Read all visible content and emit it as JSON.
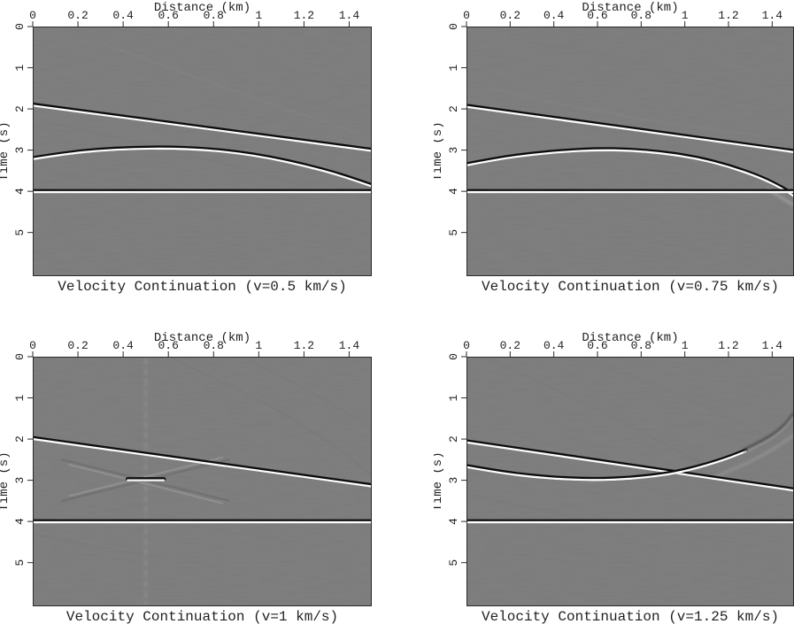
{
  "figure": {
    "background": "#ffffff",
    "text_color": "#1f1f1f",
    "panel_gray": "#7b7b7b",
    "border_color": "#2a2a2a",
    "tick_color": "#2a2a2a",
    "wavelet_white": "#ffffff",
    "wavelet_black": "#070707",
    "artifact_dark": "#5a5a5a",
    "artifact_light": "#d9d9d9"
  },
  "chart_data": [
    {
      "type": "heatmap",
      "title": "Velocity Continuation (v=0.5 km/s)",
      "xlabel": "Distance (km)",
      "ylabel": "Time (s)",
      "xlim": [
        0,
        1.5
      ],
      "ylim": [
        0,
        6.06
      ],
      "y_down": true,
      "grid": false,
      "xtick_values": [
        0,
        0.2,
        0.4,
        0.6,
        0.8,
        1,
        1.2,
        1.4
      ],
      "xtick_labels": [
        "0",
        "0.2",
        "0.4",
        "0.6",
        "0.8",
        "1",
        "1.2",
        "1.4"
      ],
      "ytick_values": [
        0,
        1,
        2,
        3,
        4,
        5
      ],
      "ytick_labels": [
        "0",
        "1",
        "2",
        "3",
        "4",
        "5"
      ],
      "events": [
        {
          "name": "dipping-reflector",
          "points": [
            [
              0,
              1.92
            ],
            [
              1.5,
              3.02
            ]
          ]
        },
        {
          "name": "under-migrated-hyperbola",
          "points": [
            [
              0,
              3.22
            ],
            [
              0.15,
              3.09
            ],
            [
              0.3,
              3.01
            ],
            [
              0.45,
              2.97
            ],
            [
              0.6,
              2.96
            ],
            [
              0.75,
              2.99
            ],
            [
              0.9,
              3.07
            ],
            [
              1.05,
              3.2
            ],
            [
              1.2,
              3.38
            ],
            [
              1.35,
              3.6
            ],
            [
              1.5,
              3.88
            ]
          ]
        },
        {
          "name": "flat-reflector",
          "points": [
            [
              0,
              4.02
            ],
            [
              1.5,
              4.02
            ]
          ]
        }
      ],
      "artifacts": [
        {
          "name": "residual-flank-a",
          "shade": "dark",
          "width": 1,
          "opacity": 0.1,
          "blur": 0.7,
          "points": [
            [
              0.05,
              2.3
            ],
            [
              0.7,
              3.1
            ],
            [
              1.35,
              4.1
            ]
          ]
        },
        {
          "name": "residual-flank-b",
          "shade": "dark",
          "width": 1,
          "opacity": 0.08,
          "blur": 0.7,
          "points": [
            [
              0.05,
              3.8
            ],
            [
              0.75,
              2.9
            ],
            [
              1.4,
              1.6
            ]
          ]
        },
        {
          "name": "residual-flank-c",
          "shade": "light",
          "width": 1,
          "opacity": 0.08,
          "blur": 0.8,
          "points": [
            [
              0.3,
              0.4
            ],
            [
              0.9,
              1.6
            ],
            [
              1.45,
              2.6
            ]
          ]
        }
      ]
    },
    {
      "type": "heatmap",
      "title": "Velocity Continuation (v=0.75 km/s)",
      "xlabel": "Distance (km)",
      "ylabel": "Time (s)",
      "xlim": [
        0,
        1.5
      ],
      "ylim": [
        0,
        6.06
      ],
      "y_down": true,
      "grid": false,
      "xtick_values": [
        0,
        0.2,
        0.4,
        0.6,
        0.8,
        1,
        1.2,
        1.4
      ],
      "xtick_labels": [
        "0",
        "0.2",
        "0.4",
        "0.6",
        "0.8",
        "1",
        "1.2",
        "1.4"
      ],
      "ytick_values": [
        0,
        1,
        2,
        3,
        4,
        5
      ],
      "ytick_labels": [
        "0",
        "1",
        "2",
        "3",
        "4",
        "5"
      ],
      "events": [
        {
          "name": "dipping-reflector",
          "points": [
            [
              0,
              1.95
            ],
            [
              1.5,
              3.05
            ]
          ]
        },
        {
          "name": "under-migrated-hyperbola",
          "points": [
            [
              0,
              3.37
            ],
            [
              0.15,
              3.22
            ],
            [
              0.3,
              3.11
            ],
            [
              0.45,
              3.04
            ],
            [
              0.6,
              3.0
            ],
            [
              0.75,
              3.01
            ],
            [
              0.9,
              3.08
            ],
            [
              1.05,
              3.2
            ],
            [
              1.2,
              3.4
            ],
            [
              1.35,
              3.68
            ],
            [
              1.45,
              3.95
            ],
            [
              1.5,
              4.12
            ]
          ]
        },
        {
          "name": "flat-reflector",
          "points": [
            [
              0,
              4.02
            ],
            [
              1.5,
              4.02
            ]
          ]
        }
      ],
      "artifacts": [
        {
          "name": "hyperbola-tail-smear",
          "shade": "light",
          "width": 2.5,
          "opacity": 0.4,
          "blur": 1.6,
          "points": [
            [
              1.38,
              3.95
            ],
            [
              1.5,
              4.34
            ]
          ]
        },
        {
          "name": "faint-arc-a",
          "shade": "dark",
          "width": 1,
          "opacity": 0.08,
          "blur": 0.9,
          "points": [
            [
              0.2,
              0.3
            ],
            [
              0.8,
              0.8
            ],
            [
              1.4,
              1.9
            ]
          ]
        },
        {
          "name": "faint-arc-b",
          "shade": "light",
          "width": 1,
          "opacity": 0.07,
          "blur": 0.9,
          "points": [
            [
              0.1,
              1.5
            ],
            [
              0.7,
              2.2
            ],
            [
              1.35,
              2.65
            ]
          ]
        }
      ]
    },
    {
      "type": "heatmap",
      "title": "Velocity Continuation (v=1 km/s)",
      "xlabel": "Distance (km)",
      "ylabel": "Time (s)",
      "xlim": [
        0,
        1.5
      ],
      "ylim": [
        0,
        6.06
      ],
      "y_down": true,
      "grid": false,
      "xtick_values": [
        0,
        0.2,
        0.4,
        0.6,
        0.8,
        1,
        1.2,
        1.4
      ],
      "xtick_labels": [
        "0",
        "0.2",
        "0.4",
        "0.6",
        "0.8",
        "1",
        "1.2",
        "1.4"
      ],
      "ytick_values": [
        0,
        1,
        2,
        3,
        4,
        5
      ],
      "ytick_labels": [
        "0",
        "1",
        "2",
        "3",
        "4",
        "5"
      ],
      "events": [
        {
          "name": "dipping-reflector",
          "points": [
            [
              0,
              2.0
            ],
            [
              1.5,
              3.15
            ]
          ]
        },
        {
          "name": "focused-diffractor",
          "points": [
            [
              0.42,
              3.0
            ],
            [
              0.58,
              3.0
            ]
          ]
        },
        {
          "name": "flat-reflector",
          "points": [
            [
              0,
              4.02
            ],
            [
              1.5,
              4.02
            ]
          ]
        }
      ],
      "artifacts": [
        {
          "name": "bowtie-arm-down",
          "shade": "dark",
          "width": 1.7,
          "opacity": 0.5,
          "blur": 0.5,
          "points": [
            [
              0.13,
              2.5
            ],
            [
              0.5,
              3.0
            ],
            [
              0.87,
              3.5
            ]
          ]
        },
        {
          "name": "bowtie-arm-up",
          "shade": "dark",
          "width": 1.7,
          "opacity": 0.5,
          "blur": 0.5,
          "points": [
            [
              0.13,
              3.5
            ],
            [
              0.5,
              3.0
            ],
            [
              0.87,
              2.5
            ]
          ]
        },
        {
          "name": "bowtie-fringe-down",
          "shade": "light",
          "width": 1.2,
          "opacity": 0.35,
          "blur": 0.5,
          "points": [
            [
              0.16,
              2.62
            ],
            [
              0.5,
              3.08
            ],
            [
              0.84,
              3.56
            ]
          ]
        },
        {
          "name": "bowtie-fringe-up",
          "shade": "light",
          "width": 1.2,
          "opacity": 0.35,
          "blur": 0.5,
          "points": [
            [
              0.16,
              3.38
            ],
            [
              0.5,
              2.92
            ],
            [
              0.84,
              2.44
            ]
          ]
        },
        {
          "name": "vertical-stripe",
          "shade": "light",
          "width": 3,
          "opacity": 0.16,
          "blur": 1.6,
          "dash": "5,7",
          "points": [
            [
              0.5,
              0.05
            ],
            [
              0.5,
              6.0
            ]
          ]
        },
        {
          "name": "faint-arc-a",
          "shade": "dark",
          "width": 1.1,
          "opacity": 0.16,
          "blur": 0.8,
          "points": [
            [
              0.62,
              0.05
            ],
            [
              1.0,
              1.0
            ],
            [
              1.35,
              2.2
            ],
            [
              1.5,
              2.9
            ]
          ]
        },
        {
          "name": "faint-arc-b",
          "shade": "dark",
          "width": 1,
          "opacity": 0.13,
          "blur": 0.8,
          "points": [
            [
              0.95,
              0.05
            ],
            [
              1.25,
              0.9
            ],
            [
              1.5,
              1.75
            ]
          ]
        },
        {
          "name": "faint-arc-c",
          "shade": "dark",
          "width": 1,
          "opacity": 0.1,
          "blur": 0.8,
          "points": [
            [
              0,
              4.3
            ],
            [
              0.25,
              4.6
            ],
            [
              0.55,
              4.85
            ]
          ]
        }
      ]
    },
    {
      "type": "heatmap",
      "title": "Velocity Continuation (v=1.25 km/s)",
      "xlabel": "Distance (km)",
      "ylabel": "Time (s)",
      "xlim": [
        0,
        1.5
      ],
      "ylim": [
        0,
        6.06
      ],
      "y_down": true,
      "grid": false,
      "xtick_values": [
        0,
        0.2,
        0.4,
        0.6,
        0.8,
        1,
        1.2,
        1.4
      ],
      "xtick_labels": [
        "0",
        "0.2",
        "0.4",
        "0.6",
        "0.8",
        "1",
        "1.2",
        "1.4"
      ],
      "ytick_values": [
        0,
        1,
        2,
        3,
        4,
        5
      ],
      "ytick_labels": [
        "0",
        "1",
        "2",
        "3",
        "4",
        "5"
      ],
      "events": [
        {
          "name": "dipping-reflector",
          "points": [
            [
              0,
              2.08
            ],
            [
              1.5,
              3.25
            ]
          ]
        },
        {
          "name": "over-migrated-smile",
          "points": [
            [
              0,
              2.68
            ],
            [
              0.15,
              2.82
            ],
            [
              0.3,
              2.92
            ],
            [
              0.45,
              2.98
            ],
            [
              0.6,
              3.0
            ],
            [
              0.75,
              2.97
            ],
            [
              0.9,
              2.88
            ],
            [
              1.0,
              2.78
            ],
            [
              1.1,
              2.64
            ],
            [
              1.2,
              2.47
            ],
            [
              1.28,
              2.3
            ]
          ]
        },
        {
          "name": "over-migrated-smile-tail",
          "blur": 1.7,
          "opacity": 0.75,
          "points": [
            [
              1.28,
              2.3
            ],
            [
              1.38,
              2.05
            ],
            [
              1.46,
              1.73
            ],
            [
              1.5,
              1.45
            ]
          ]
        },
        {
          "name": "flat-reflector",
          "points": [
            [
              0,
              4.02
            ],
            [
              1.5,
              4.02
            ]
          ]
        }
      ],
      "artifacts": [
        {
          "name": "big-arc-a",
          "shade": "dark",
          "width": 1.1,
          "opacity": 0.13,
          "blur": 1,
          "points": [
            [
              0.1,
              0.05
            ],
            [
              0.5,
              1.0
            ],
            [
              0.9,
              2.1
            ],
            [
              1.1,
              2.65
            ]
          ]
        },
        {
          "name": "big-arc-b",
          "shade": "dark",
          "width": 1,
          "opacity": 0.11,
          "blur": 1,
          "points": [
            [
              0.55,
              0.05
            ],
            [
              0.95,
              0.85
            ],
            [
              1.35,
              1.85
            ],
            [
              1.5,
              2.3
            ]
          ]
        },
        {
          "name": "smile-parallel-fringe",
          "shade": "light",
          "width": 2,
          "opacity": 0.3,
          "blur": 1.5,
          "points": [
            [
              1.12,
              2.95
            ],
            [
              1.28,
              2.62
            ],
            [
              1.42,
              2.2
            ],
            [
              1.5,
              1.9
            ]
          ]
        },
        {
          "name": "faint-lower-left-arc",
          "shade": "dark",
          "width": 1,
          "opacity": 0.1,
          "blur": 0.9,
          "points": [
            [
              0,
              3.3
            ],
            [
              0.3,
              3.7
            ],
            [
              0.6,
              4.0
            ]
          ]
        }
      ]
    }
  ]
}
